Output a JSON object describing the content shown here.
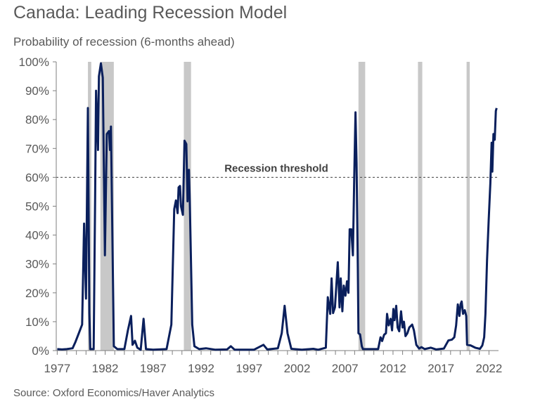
{
  "title": "Canada: Leading Recession Model",
  "subtitle": "Probability of recession (6-months ahead)",
  "source": "Source: Oxford Economics/Haver Analytics",
  "chart_data": {
    "type": "line",
    "title": "Canada: Leading Recession Model",
    "ylabel": "Probability of recession (6-months ahead)",
    "xlabel": "",
    "xlim": [
      1976.9,
      2022.85
    ],
    "ylim": [
      0,
      100
    ],
    "x_ticks": [
      "1977",
      "1982",
      "1987",
      "1992",
      "1997",
      "2002",
      "2007",
      "2012",
      "2017",
      "2022"
    ],
    "y_ticks": [
      "0%",
      "10%",
      "20%",
      "30%",
      "40%",
      "50%",
      "60%",
      "70%",
      "80%",
      "90%",
      "100%"
    ],
    "grid": false,
    "line_color": "#0a1f5c",
    "recession_band_color": "#c8c8c8",
    "recession_bands": [
      [
        1980.2,
        1980.55
      ],
      [
        1981.5,
        1982.9
      ],
      [
        1990.2,
        1990.95
      ],
      [
        2008.4,
        2009.1
      ],
      [
        2014.6,
        2015.05
      ],
      [
        2019.67,
        2020.0
      ]
    ],
    "threshold": {
      "value": 60,
      "label": "Recession threshold"
    },
    "points": [
      [
        1977.0,
        0.5
      ],
      [
        1977.5,
        0.4
      ],
      [
        1978.0,
        0.5
      ],
      [
        1978.6,
        0.8
      ],
      [
        1978.9,
        3
      ],
      [
        1979.25,
        6
      ],
      [
        1979.6,
        9
      ],
      [
        1979.8,
        44
      ],
      [
        1980.0,
        18
      ],
      [
        1980.2,
        84
      ],
      [
        1980.35,
        13
      ],
      [
        1980.45,
        0.5
      ],
      [
        1980.8,
        0.5
      ],
      [
        1980.95,
        53
      ],
      [
        1981.05,
        90
      ],
      [
        1981.25,
        69.5
      ],
      [
        1981.35,
        95
      ],
      [
        1981.55,
        99.5
      ],
      [
        1981.75,
        94.5
      ],
      [
        1981.97,
        33
      ],
      [
        1982.17,
        75
      ],
      [
        1982.4,
        76
      ],
      [
        1982.5,
        69.5
      ],
      [
        1982.6,
        77.6
      ],
      [
        1982.9,
        1.5
      ],
      [
        1983.27,
        0.5
      ],
      [
        1984.0,
        0.5
      ],
      [
        1984.37,
        7
      ],
      [
        1984.7,
        12
      ],
      [
        1984.85,
        2
      ],
      [
        1985.1,
        3.4
      ],
      [
        1985.35,
        1
      ],
      [
        1985.7,
        0.3
      ],
      [
        1986.0,
        11
      ],
      [
        1986.25,
        0.5
      ],
      [
        1987.0,
        0.3
      ],
      [
        1988.4,
        0.5
      ],
      [
        1988.9,
        9
      ],
      [
        1989.2,
        49
      ],
      [
        1989.37,
        52
      ],
      [
        1989.55,
        47.6
      ],
      [
        1989.65,
        56.5
      ],
      [
        1989.8,
        57
      ],
      [
        1989.9,
        50
      ],
      [
        1990.1,
        47
      ],
      [
        1990.27,
        72.7
      ],
      [
        1990.46,
        71.5
      ],
      [
        1990.58,
        51.7
      ],
      [
        1990.73,
        62.6
      ],
      [
        1990.82,
        52
      ],
      [
        1991.07,
        9
      ],
      [
        1991.3,
        1.5
      ],
      [
        1991.8,
        0.5
      ],
      [
        1992.5,
        0.8
      ],
      [
        1993.5,
        0.3
      ],
      [
        1994.7,
        0.4
      ],
      [
        1995.1,
        1.5
      ],
      [
        1995.5,
        0.3
      ],
      [
        1997.5,
        0.3
      ],
      [
        1998.5,
        2
      ],
      [
        1998.9,
        0.4
      ],
      [
        2000.0,
        0.8
      ],
      [
        2000.4,
        6
      ],
      [
        2000.7,
        15.5
      ],
      [
        2001.0,
        6
      ],
      [
        2001.4,
        0.6
      ],
      [
        2002.5,
        0.3
      ],
      [
        2003.7,
        0.6
      ],
      [
        2004.2,
        0.3
      ],
      [
        2005.0,
        1
      ],
      [
        2005.2,
        18.5
      ],
      [
        2005.45,
        12.7
      ],
      [
        2005.6,
        25
      ],
      [
        2005.75,
        13
      ],
      [
        2005.95,
        15
      ],
      [
        2006.24,
        30.6
      ],
      [
        2006.43,
        15
      ],
      [
        2006.55,
        25
      ],
      [
        2006.72,
        13.6
      ],
      [
        2006.87,
        22.5
      ],
      [
        2007.04,
        19
      ],
      [
        2007.2,
        24
      ],
      [
        2007.36,
        20
      ],
      [
        2007.48,
        42
      ],
      [
        2007.65,
        42
      ],
      [
        2007.82,
        33
      ],
      [
        2007.96,
        59.8
      ],
      [
        2008.09,
        82.5
      ],
      [
        2008.2,
        65
      ],
      [
        2008.33,
        29
      ],
      [
        2008.4,
        6
      ],
      [
        2008.57,
        5.6
      ],
      [
        2008.75,
        1.5
      ],
      [
        2008.87,
        0.5
      ],
      [
        2010.45,
        0.5
      ],
      [
        2010.7,
        4.6
      ],
      [
        2010.87,
        3.3
      ],
      [
        2011.07,
        5.5
      ],
      [
        2011.26,
        6
      ],
      [
        2011.38,
        12.7
      ],
      [
        2011.55,
        8.7
      ],
      [
        2011.75,
        11
      ],
      [
        2011.9,
        7
      ],
      [
        2012.04,
        14.4
      ],
      [
        2012.16,
        10.5
      ],
      [
        2012.33,
        15.5
      ],
      [
        2012.48,
        8
      ],
      [
        2012.65,
        6.7
      ],
      [
        2012.84,
        13.6
      ],
      [
        2013.0,
        8
      ],
      [
        2013.14,
        10
      ],
      [
        2013.3,
        5
      ],
      [
        2013.5,
        6
      ],
      [
        2013.7,
        8
      ],
      [
        2014.0,
        9
      ],
      [
        2014.18,
        7
      ],
      [
        2014.43,
        2
      ],
      [
        2014.72,
        0.7
      ],
      [
        2014.97,
        1.2
      ],
      [
        2015.3,
        0.5
      ],
      [
        2015.95,
        1
      ],
      [
        2016.5,
        0.4
      ],
      [
        2017.3,
        0.7
      ],
      [
        2017.77,
        3.5
      ],
      [
        2018.14,
        3.8
      ],
      [
        2018.39,
        4.6
      ],
      [
        2018.58,
        8.7
      ],
      [
        2018.75,
        16
      ],
      [
        2018.92,
        12
      ],
      [
        2019.04,
        16
      ],
      [
        2019.16,
        17
      ],
      [
        2019.3,
        12.7
      ],
      [
        2019.48,
        14
      ],
      [
        2019.63,
        12
      ],
      [
        2019.72,
        2
      ],
      [
        2020.09,
        1.8
      ],
      [
        2020.57,
        1
      ],
      [
        2021.06,
        0.6
      ],
      [
        2021.31,
        1.8
      ],
      [
        2021.5,
        4.6
      ],
      [
        2021.63,
        12.7
      ],
      [
        2021.8,
        31.4
      ],
      [
        2021.97,
        45
      ],
      [
        2022.15,
        58
      ],
      [
        2022.28,
        72
      ],
      [
        2022.35,
        62
      ],
      [
        2022.47,
        75
      ],
      [
        2022.6,
        73
      ],
      [
        2022.72,
        83
      ],
      [
        2022.8,
        84
      ]
    ]
  }
}
